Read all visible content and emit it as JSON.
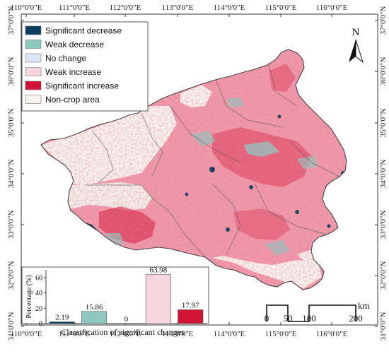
{
  "axes": {
    "top_ticks": [
      "110°0'0\"E",
      "111°0'0\"E",
      "112°0'0\"E",
      "113°0'0\"E",
      "114°0'0\"E",
      "115°0'0\"E",
      "116°0'0\"E"
    ],
    "bottom_ticks": [
      "110°0'0\"E",
      "111°0'0\"E",
      "112°0'0\"E",
      "113°0'0\"E",
      "114°0'0\"E",
      "115°0'0\"E",
      "116°0'0\"E"
    ],
    "left_ticks": [
      "37°0'0\"N",
      "36°0'0\"N",
      "35°0'0\"N",
      "34°0'0\"N",
      "33°0'0\"N",
      "32°0'0\"N",
      "31°0'0\"N"
    ],
    "right_ticks": [
      "37°0'0\"N",
      "36°0'0\"N",
      "35°0'0\"N",
      "34°0'0\"N",
      "33°0'0\"N",
      "32°0'0\"N",
      "31°0'0\"N"
    ]
  },
  "legend": {
    "items": [
      {
        "label": "Significant decrease",
        "color": "#0b3d5e"
      },
      {
        "label": "Weak decrease",
        "color": "#8ec9c0"
      },
      {
        "label": "No change",
        "color": "#dce6f5"
      },
      {
        "label": "Weak increase",
        "color": "#f8d4dc"
      },
      {
        "label": "Significant increase",
        "color": "#d11436"
      },
      {
        "label": "Non-crop area",
        "color": "#f6f4ef"
      }
    ]
  },
  "north_arrow": {
    "label": "N"
  },
  "scale_bar": {
    "labels": [
      "0",
      "50",
      "100",
      "200"
    ],
    "unit": "km"
  },
  "colors": {
    "map_base": "#ee9aaa",
    "map_dense": "#e0506b",
    "non_crop": "#f6f4ef",
    "border": "#444444"
  },
  "chart_data": {
    "type": "bar",
    "categories": [
      "Significant decrease",
      "Weak decrease",
      "No change",
      "Weak increase",
      "Significant increase"
    ],
    "values": [
      2.19,
      15.86,
      0,
      63.98,
      17.97
    ],
    "value_labels": [
      "2.19",
      "15.86",
      "0",
      "63.98",
      "17.97"
    ],
    "colors": [
      "#0b3d5e",
      "#8ec9c0",
      "#dce6f5",
      "#f8d4dc",
      "#d11436"
    ],
    "xlabel": "Classification of significant changes",
    "ylabel": "Percentage (%)",
    "ylim": [
      0,
      70
    ],
    "yticks": [
      "0",
      "20",
      "40",
      "60"
    ]
  }
}
